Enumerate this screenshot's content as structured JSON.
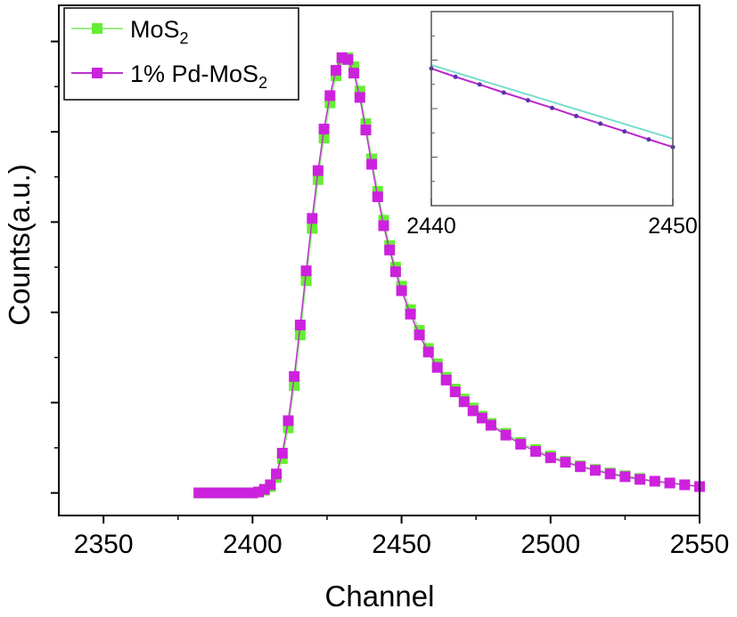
{
  "chart_data": {
    "type": "scatter",
    "xlabel": "Channel",
    "ylabel": "Counts(a.u.)",
    "xlim": [
      2335,
      2550
    ],
    "ylim": [
      -0.25,
      5.4
    ],
    "x_ticks": [
      2350,
      2400,
      2450,
      2500,
      2550
    ],
    "series": [
      {
        "name": "MoS2",
        "label_main": "MoS",
        "label_sub": "2",
        "color": "#66ee33",
        "line_color": "#99ee88",
        "x": [
          2382,
          2385,
          2388,
          2391,
          2394,
          2397,
          2400,
          2402,
          2404,
          2406,
          2408,
          2410,
          2412,
          2414,
          2416,
          2418,
          2420,
          2422,
          2424,
          2426,
          2428,
          2430,
          2432,
          2434,
          2436,
          2438,
          2440,
          2442,
          2444,
          2446,
          2448,
          2450,
          2453,
          2456,
          2459,
          2462,
          2465,
          2468,
          2471,
          2474,
          2477,
          2480,
          2485,
          2490,
          2495,
          2500,
          2505,
          2510,
          2515,
          2520,
          2525,
          2530,
          2535,
          2540,
          2545,
          2550
        ],
        "y": [
          0.0,
          0.0,
          0.0,
          0.0,
          0.0,
          0.0,
          0.0,
          0.01,
          0.03,
          0.07,
          0.17,
          0.38,
          0.72,
          1.19,
          1.75,
          2.35,
          2.93,
          3.47,
          3.93,
          4.32,
          4.62,
          4.8,
          4.82,
          4.72,
          4.45,
          4.09,
          3.7,
          3.34,
          3.02,
          2.74,
          2.5,
          2.29,
          2.03,
          1.8,
          1.6,
          1.43,
          1.28,
          1.15,
          1.04,
          0.94,
          0.85,
          0.77,
          0.66,
          0.56,
          0.48,
          0.41,
          0.35,
          0.3,
          0.26,
          0.22,
          0.19,
          0.16,
          0.13,
          0.11,
          0.09,
          0.07
        ]
      },
      {
        "name": "1% Pd-MoS2",
        "label_main": "1% Pd-MoS",
        "label_sub": "2",
        "color": "#cc22dd",
        "line_color": "#bb33cc",
        "x": [
          2382,
          2385,
          2388,
          2391,
          2394,
          2397,
          2400,
          2402,
          2404,
          2406,
          2408,
          2410,
          2412,
          2414,
          2416,
          2418,
          2420,
          2422,
          2424,
          2426,
          2428,
          2430,
          2432,
          2434,
          2436,
          2438,
          2440,
          2442,
          2444,
          2446,
          2448,
          2450,
          2453,
          2456,
          2459,
          2462,
          2465,
          2468,
          2471,
          2474,
          2477,
          2480,
          2485,
          2490,
          2495,
          2500,
          2505,
          2510,
          2515,
          2520,
          2525,
          2530,
          2535,
          2540,
          2545,
          2550
        ],
        "y": [
          0.0,
          0.0,
          0.0,
          0.0,
          0.0,
          0.0,
          0.0,
          0.01,
          0.04,
          0.09,
          0.21,
          0.44,
          0.8,
          1.29,
          1.86,
          2.46,
          3.04,
          3.57,
          4.03,
          4.4,
          4.68,
          4.82,
          4.8,
          4.65,
          4.38,
          4.02,
          3.64,
          3.28,
          2.96,
          2.69,
          2.45,
          2.24,
          1.98,
          1.75,
          1.56,
          1.39,
          1.25,
          1.12,
          1.01,
          0.91,
          0.83,
          0.75,
          0.64,
          0.54,
          0.46,
          0.39,
          0.34,
          0.29,
          0.25,
          0.21,
          0.18,
          0.15,
          0.13,
          0.11,
          0.09,
          0.07
        ]
      }
    ],
    "legend": "top-left",
    "inset": {
      "xlim": [
        2440,
        2450
      ],
      "x_ticks": [
        2440,
        2450
      ],
      "ylim": [
        3.3,
        3.88
      ],
      "series": [
        {
          "name": "MoS2",
          "x": [
            2440,
            2450
          ],
          "y": [
            3.72,
            3.5
          ]
        },
        {
          "name": "1% Pd-MoS2",
          "x": [
            2440,
            2441,
            2442,
            2443,
            2444,
            2445,
            2446,
            2447,
            2448,
            2449,
            2450
          ],
          "y": [
            3.71,
            3.685,
            3.662,
            3.638,
            3.615,
            3.592,
            3.568,
            3.545,
            3.522,
            3.498,
            3.475
          ]
        }
      ]
    }
  }
}
